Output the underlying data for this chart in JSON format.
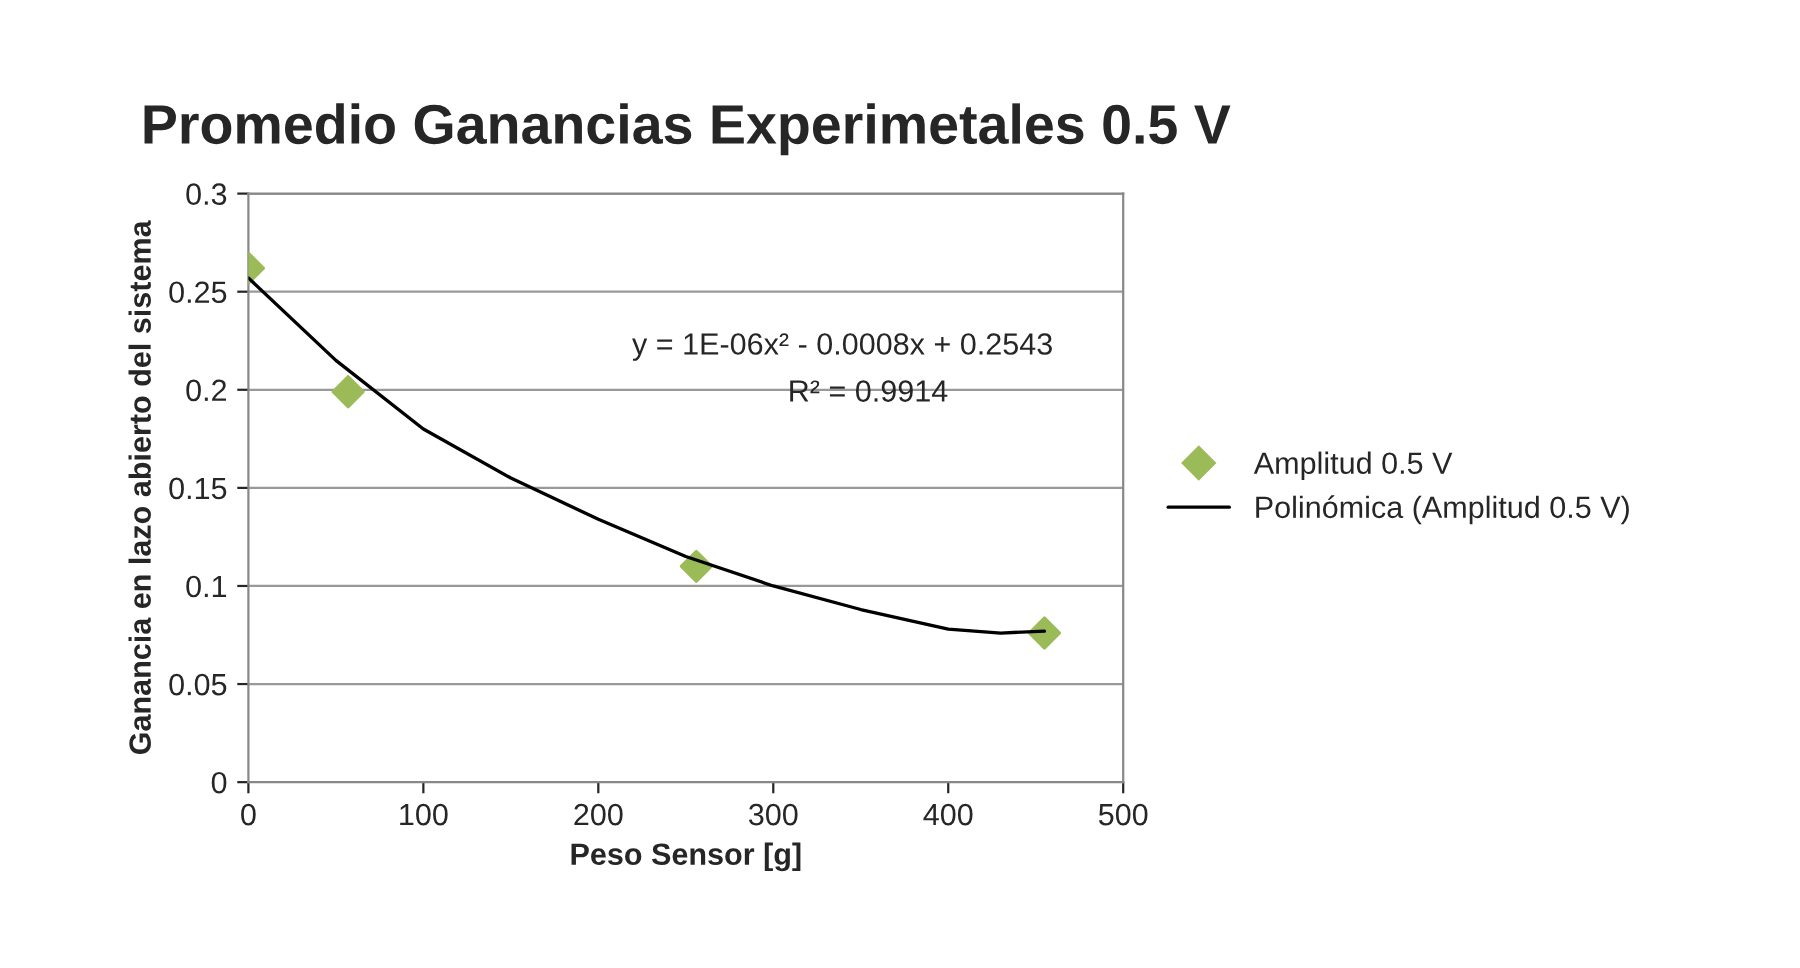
{
  "chart_data": {
    "type": "scatter",
    "title": "Promedio Ganancias Experimetales 0.5 V",
    "xlabel": "Peso Sensor [g]",
    "ylabel": "Ganancia en lazo abierto del sistema",
    "series": [
      {
        "name": "Amplitud 0.5 V",
        "color": "#9bbb59",
        "marker": "diamond",
        "x": [
          0,
          57,
          256,
          455
        ],
        "values": [
          0.262,
          0.199,
          0.11,
          0.076
        ]
      },
      {
        "name": "Polinómica (Amplitud 0.5 V)",
        "type": "line",
        "color": "#000000",
        "marker": "none",
        "line_style": "solid",
        "x": [
          0,
          50,
          100,
          150,
          200,
          250,
          300,
          350,
          400,
          430,
          455
        ],
        "values": [
          0.257,
          0.215,
          0.18,
          0.155,
          0.134,
          0.115,
          0.1,
          0.088,
          0.078,
          0.076,
          0.077
        ]
      }
    ],
    "annotations": [
      "y = 1E-06x² - 0.0008x + 0.2543",
      "R² = 0.9914"
    ],
    "xlim": [
      0,
      500
    ],
    "xticks": [
      0,
      100,
      200,
      300,
      400,
      500
    ],
    "ylim": [
      0,
      0.3
    ],
    "yticks": [
      0,
      0.05,
      0.1,
      0.15,
      0.2,
      0.25,
      0.3
    ],
    "grid": "y",
    "legend": "right"
  }
}
